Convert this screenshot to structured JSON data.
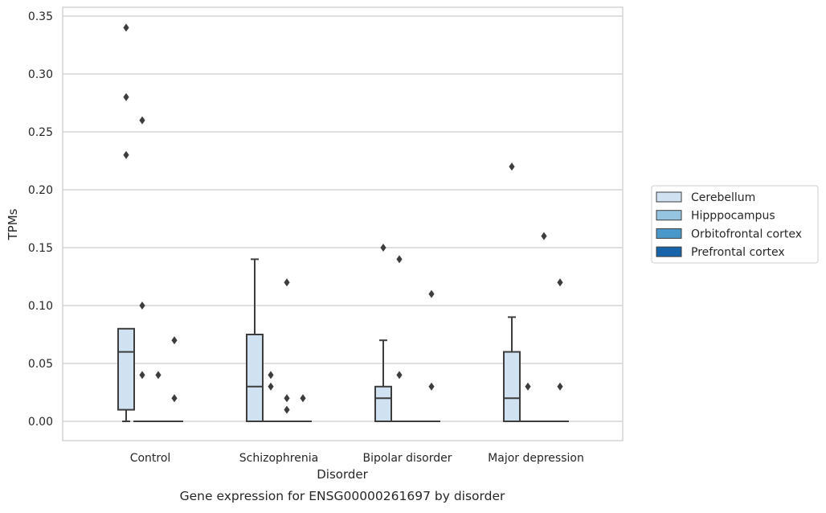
{
  "chart_data": {
    "type": "box",
    "title": "Gene expression for ENSG00000261697 by disorder",
    "xlabel": "Disorder",
    "ylabel": "TPMs",
    "ylim": [
      -0.017,
      0.357
    ],
    "yticks": [
      0.0,
      0.05,
      0.1,
      0.15,
      0.2,
      0.25,
      0.3,
      0.35
    ],
    "ytick_labels": [
      "0.00",
      "0.05",
      "0.10",
      "0.15",
      "0.20",
      "0.25",
      "0.30",
      "0.35"
    ],
    "categories": [
      "Control",
      "Schizophrenia",
      "Bipolar disorder",
      "Major depression"
    ],
    "grid": "horizontal",
    "legend_position": "right",
    "series": [
      {
        "name": "Cerebellum",
        "color": "#d0e1f2",
        "boxes": [
          {
            "whislo": 0.0,
            "q1": 0.01,
            "med": 0.06,
            "q3": 0.08,
            "whishi": 0.08,
            "fliers": [
              0.34,
              0.28,
              0.23
            ]
          },
          {
            "whislo": 0.0,
            "q1": 0.0,
            "med": 0.03,
            "q3": 0.075,
            "whishi": 0.14,
            "fliers": []
          },
          {
            "whislo": 0.0,
            "q1": 0.0,
            "med": 0.02,
            "q3": 0.03,
            "whishi": 0.07,
            "fliers": [
              0.15
            ]
          },
          {
            "whislo": 0.0,
            "q1": 0.0,
            "med": 0.02,
            "q3": 0.06,
            "whishi": 0.09,
            "fliers": [
              0.22
            ]
          }
        ]
      },
      {
        "name": "Hipppocampus",
        "color": "#94c4df",
        "boxes": [
          {
            "whislo": 0.0,
            "q1": 0.0,
            "med": 0.0,
            "q3": 0.0,
            "whishi": 0.0,
            "fliers": [
              0.26,
              0.1,
              0.04
            ]
          },
          {
            "whislo": 0.0,
            "q1": 0.0,
            "med": 0.0,
            "q3": 0.0,
            "whishi": 0.0,
            "fliers": [
              0.04,
              0.03
            ]
          },
          {
            "whislo": 0.0,
            "q1": 0.0,
            "med": 0.0,
            "q3": 0.0,
            "whishi": 0.0,
            "fliers": [
              0.14,
              0.04
            ]
          },
          {
            "whislo": 0.0,
            "q1": 0.0,
            "med": 0.0,
            "q3": 0.0,
            "whishi": 0.0,
            "fliers": [
              0.03
            ]
          }
        ]
      },
      {
        "name": "Orbitofrontal cortex",
        "color": "#4a98c9",
        "boxes": [
          {
            "whislo": 0.0,
            "q1": 0.0,
            "med": 0.0,
            "q3": 0.0,
            "whishi": 0.0,
            "fliers": [
              0.04
            ]
          },
          {
            "whislo": 0.0,
            "q1": 0.0,
            "med": 0.0,
            "q3": 0.0,
            "whishi": 0.0,
            "fliers": [
              0.12,
              0.02,
              0.01
            ]
          },
          {
            "whislo": 0.0,
            "q1": 0.0,
            "med": 0.0,
            "q3": 0.0,
            "whishi": 0.0,
            "fliers": []
          },
          {
            "whislo": 0.0,
            "q1": 0.0,
            "med": 0.0,
            "q3": 0.0,
            "whishi": 0.0,
            "fliers": [
              0.16
            ]
          }
        ]
      },
      {
        "name": "Prefrontal cortex",
        "color": "#1764ab",
        "boxes": [
          {
            "whislo": 0.0,
            "q1": 0.0,
            "med": 0.0,
            "q3": 0.0,
            "whishi": 0.0,
            "fliers": [
              0.07,
              0.02
            ]
          },
          {
            "whislo": 0.0,
            "q1": 0.0,
            "med": 0.0,
            "q3": 0.0,
            "whishi": 0.0,
            "fliers": [
              0.02
            ]
          },
          {
            "whislo": 0.0,
            "q1": 0.0,
            "med": 0.0,
            "q3": 0.0,
            "whishi": 0.0,
            "fliers": [
              0.11,
              0.03
            ]
          },
          {
            "whislo": 0.0,
            "q1": 0.0,
            "med": 0.0,
            "q3": 0.0,
            "whishi": 0.0,
            "fliers": [
              0.12,
              0.03
            ]
          }
        ]
      }
    ]
  }
}
